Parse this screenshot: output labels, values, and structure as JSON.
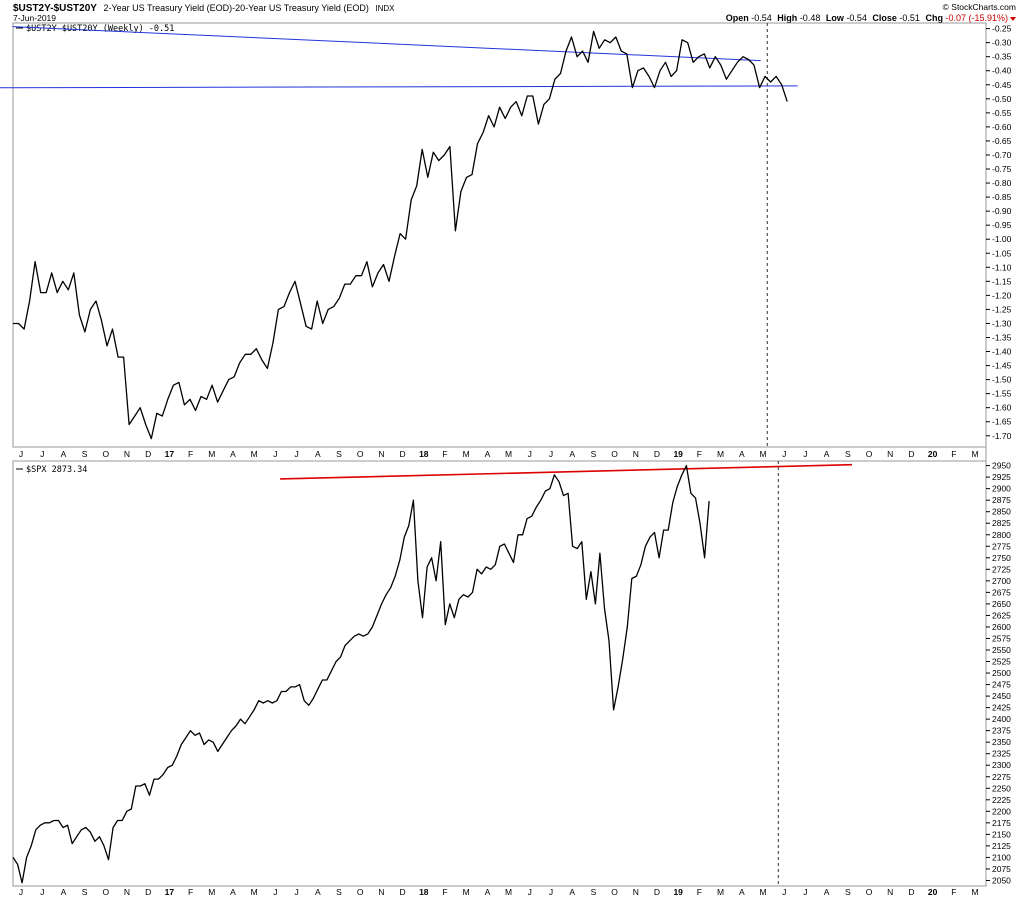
{
  "header": {
    "symbol": "$UST2Y-$UST20Y",
    "description": "2-Year US Treasury Yield (EOD)-20-Year US Treasury Yield (EOD)",
    "exchange": "INDX",
    "date": "7-Jun-2019",
    "brand": "© StockCharts.com",
    "open_label": "Open",
    "open_value": "-0.54",
    "high_label": "High",
    "high_value": "-0.48",
    "low_label": "Low",
    "low_value": "-0.54",
    "close_label": "Close",
    "close_value": "-0.51",
    "chg_label": "Chg",
    "chg_value": "-0.07 (-15.91%)",
    "chg_color": "#cc0000"
  },
  "chart_data": [
    {
      "type": "line",
      "legend": "$UST2Y-$UST20Y (Weekly) -0.51",
      "ylim": [
        -1.74,
        -0.23
      ],
      "yticks": [
        "-0.25",
        "-0.30",
        "-0.35",
        "-0.40",
        "-0.45",
        "-0.50",
        "-0.55",
        "-0.60",
        "-0.65",
        "-0.70",
        "-0.75",
        "-0.80",
        "-0.85",
        "-0.90",
        "-0.95",
        "-1.00",
        "-1.05",
        "-1.10",
        "-1.15",
        "-1.20",
        "-1.25",
        "-1.30",
        "-1.35",
        "-1.40",
        "-1.45",
        "-1.50",
        "-1.55",
        "-1.60",
        "-1.65",
        "-1.70"
      ],
      "xticks": [
        "J",
        "J",
        "A",
        "S",
        "O",
        "N",
        "D",
        "17",
        "F",
        "M",
        "A",
        "M",
        "J",
        "J",
        "A",
        "S",
        "O",
        "N",
        "D",
        "18",
        "F",
        "M",
        "A",
        "M",
        "J",
        "J",
        "A",
        "S",
        "O",
        "N",
        "D",
        "19",
        "F",
        "M",
        "A",
        "M",
        "J",
        "J",
        "A",
        "S",
        "O",
        "N",
        "D",
        "20",
        "F",
        "M"
      ],
      "series": [
        {
          "values": [
            -1.3,
            -1.3,
            -1.32,
            -1.22,
            -1.08,
            -1.19,
            -1.19,
            -1.12,
            -1.19,
            -1.15,
            -1.18,
            -1.12,
            -1.27,
            -1.33,
            -1.25,
            -1.22,
            -1.29,
            -1.38,
            -1.32,
            -1.42,
            -1.42,
            -1.66,
            -1.63,
            -1.6,
            -1.66,
            -1.71,
            -1.62,
            -1.63,
            -1.57,
            -1.52,
            -1.51,
            -1.59,
            -1.57,
            -1.61,
            -1.56,
            -1.57,
            -1.52,
            -1.58,
            -1.54,
            -1.5,
            -1.49,
            -1.44,
            -1.41,
            -1.41,
            -1.39,
            -1.43,
            -1.46,
            -1.37,
            -1.25,
            -1.24,
            -1.19,
            -1.15,
            -1.23,
            -1.31,
            -1.32,
            -1.22,
            -1.3,
            -1.25,
            -1.24,
            -1.21,
            -1.16,
            -1.16,
            -1.13,
            -1.13,
            -1.08,
            -1.17,
            -1.12,
            -1.09,
            -1.15,
            -1.06,
            -0.98,
            -1.0,
            -0.86,
            -0.81,
            -0.68,
            -0.78,
            -0.69,
            -0.72,
            -0.7,
            -0.67,
            -0.97,
            -0.83,
            -0.78,
            -0.77,
            -0.66,
            -0.62,
            -0.56,
            -0.6,
            -0.53,
            -0.57,
            -0.53,
            -0.51,
            -0.56,
            -0.49,
            -0.49,
            -0.59,
            -0.52,
            -0.5,
            -0.43,
            -0.41,
            -0.33,
            -0.28,
            -0.35,
            -0.33,
            -0.37,
            -0.26,
            -0.32,
            -0.29,
            -0.3,
            -0.28,
            -0.33,
            -0.34,
            -0.46,
            -0.4,
            -0.39,
            -0.42,
            -0.46,
            -0.4,
            -0.37,
            -0.42,
            -0.4,
            -0.29,
            -0.3,
            -0.37,
            -0.35,
            -0.34,
            -0.39,
            -0.35,
            -0.38,
            -0.43,
            -0.4,
            -0.37,
            -0.35,
            -0.36,
            -0.38,
            -0.46,
            -0.42,
            -0.44,
            -0.42,
            -0.45,
            -0.51
          ]
        }
      ],
      "trendlines": [
        {
          "name": "resistance",
          "color": "#2233dd",
          "x": [
            -0.1,
            135.2
          ],
          "y": [
            -0.243,
            -0.364
          ]
        },
        {
          "name": "support",
          "color": "#2233dd",
          "x": [
            -12.5,
            141.9
          ],
          "y": [
            -0.461,
            -0.454
          ]
        }
      ],
      "last_bar_line": 136.4,
      "grid": false
    },
    {
      "type": "line",
      "legend": "$SPX 2873.34",
      "ylim": [
        2038,
        2960
      ],
      "yticks": [
        "2950",
        "2925",
        "2900",
        "2875",
        "2850",
        "2825",
        "2800",
        "2775",
        "2750",
        "2725",
        "2700",
        "2675",
        "2650",
        "2625",
        "2600",
        "2575",
        "2550",
        "2525",
        "2500",
        "2475",
        "2450",
        "2425",
        "2400",
        "2375",
        "2350",
        "2325",
        "2300",
        "2275",
        "2250",
        "2225",
        "2200",
        "2175",
        "2150",
        "2125",
        "2100",
        "2075",
        "2050"
      ],
      "xticks": [
        "J",
        "J",
        "A",
        "S",
        "O",
        "N",
        "D",
        "17",
        "F",
        "M",
        "A",
        "M",
        "J",
        "J",
        "A",
        "S",
        "O",
        "N",
        "D",
        "18",
        "F",
        "M",
        "A",
        "M",
        "J",
        "J",
        "A",
        "S",
        "O",
        "N",
        "D",
        "19",
        "F",
        "M",
        "A",
        "M",
        "J",
        "J",
        "A",
        "S",
        "O",
        "N",
        "D",
        "20",
        "F",
        "M"
      ],
      "series": [
        {
          "values": [
            2100,
            2085,
            2045,
            2100,
            2125,
            2160,
            2170,
            2175,
            2175,
            2180,
            2180,
            2165,
            2170,
            2130,
            2145,
            2160,
            2165,
            2155,
            2135,
            2145,
            2125,
            2095,
            2165,
            2180,
            2180,
            2200,
            2205,
            2255,
            2255,
            2260,
            2235,
            2270,
            2270,
            2280,
            2295,
            2300,
            2320,
            2345,
            2360,
            2375,
            2365,
            2370,
            2345,
            2355,
            2350,
            2330,
            2345,
            2360,
            2375,
            2385,
            2400,
            2390,
            2405,
            2420,
            2440,
            2435,
            2440,
            2435,
            2440,
            2460,
            2460,
            2470,
            2470,
            2475,
            2440,
            2430,
            2445,
            2465,
            2485,
            2485,
            2505,
            2525,
            2535,
            2560,
            2570,
            2580,
            2585,
            2580,
            2585,
            2600,
            2625,
            2650,
            2670,
            2685,
            2710,
            2745,
            2795,
            2820,
            2875,
            2700,
            2620,
            2730,
            2750,
            2700,
            2785,
            2605,
            2650,
            2620,
            2660,
            2670,
            2665,
            2675,
            2725,
            2715,
            2730,
            2725,
            2735,
            2775,
            2780,
            2760,
            2740,
            2800,
            2800,
            2835,
            2840,
            2860,
            2875,
            2895,
            2900,
            2930,
            2915,
            2885,
            2890,
            2775,
            2770,
            2785,
            2660,
            2720,
            2650,
            2760,
            2640,
            2570,
            2420,
            2470,
            2530,
            2600,
            2705,
            2710,
            2735,
            2775,
            2795,
            2805,
            2750,
            2810,
            2810,
            2870,
            2905,
            2930,
            2950,
            2890,
            2880,
            2825,
            2750,
            2873
          ]
        }
      ],
      "trendlines": [
        {
          "name": "resistance",
          "color": "#dd0000",
          "x": [
            58.7,
            184.4
          ],
          "y": [
            2921,
            2952
          ]
        }
      ],
      "last_bar_line": 168.2,
      "grid": false
    }
  ]
}
